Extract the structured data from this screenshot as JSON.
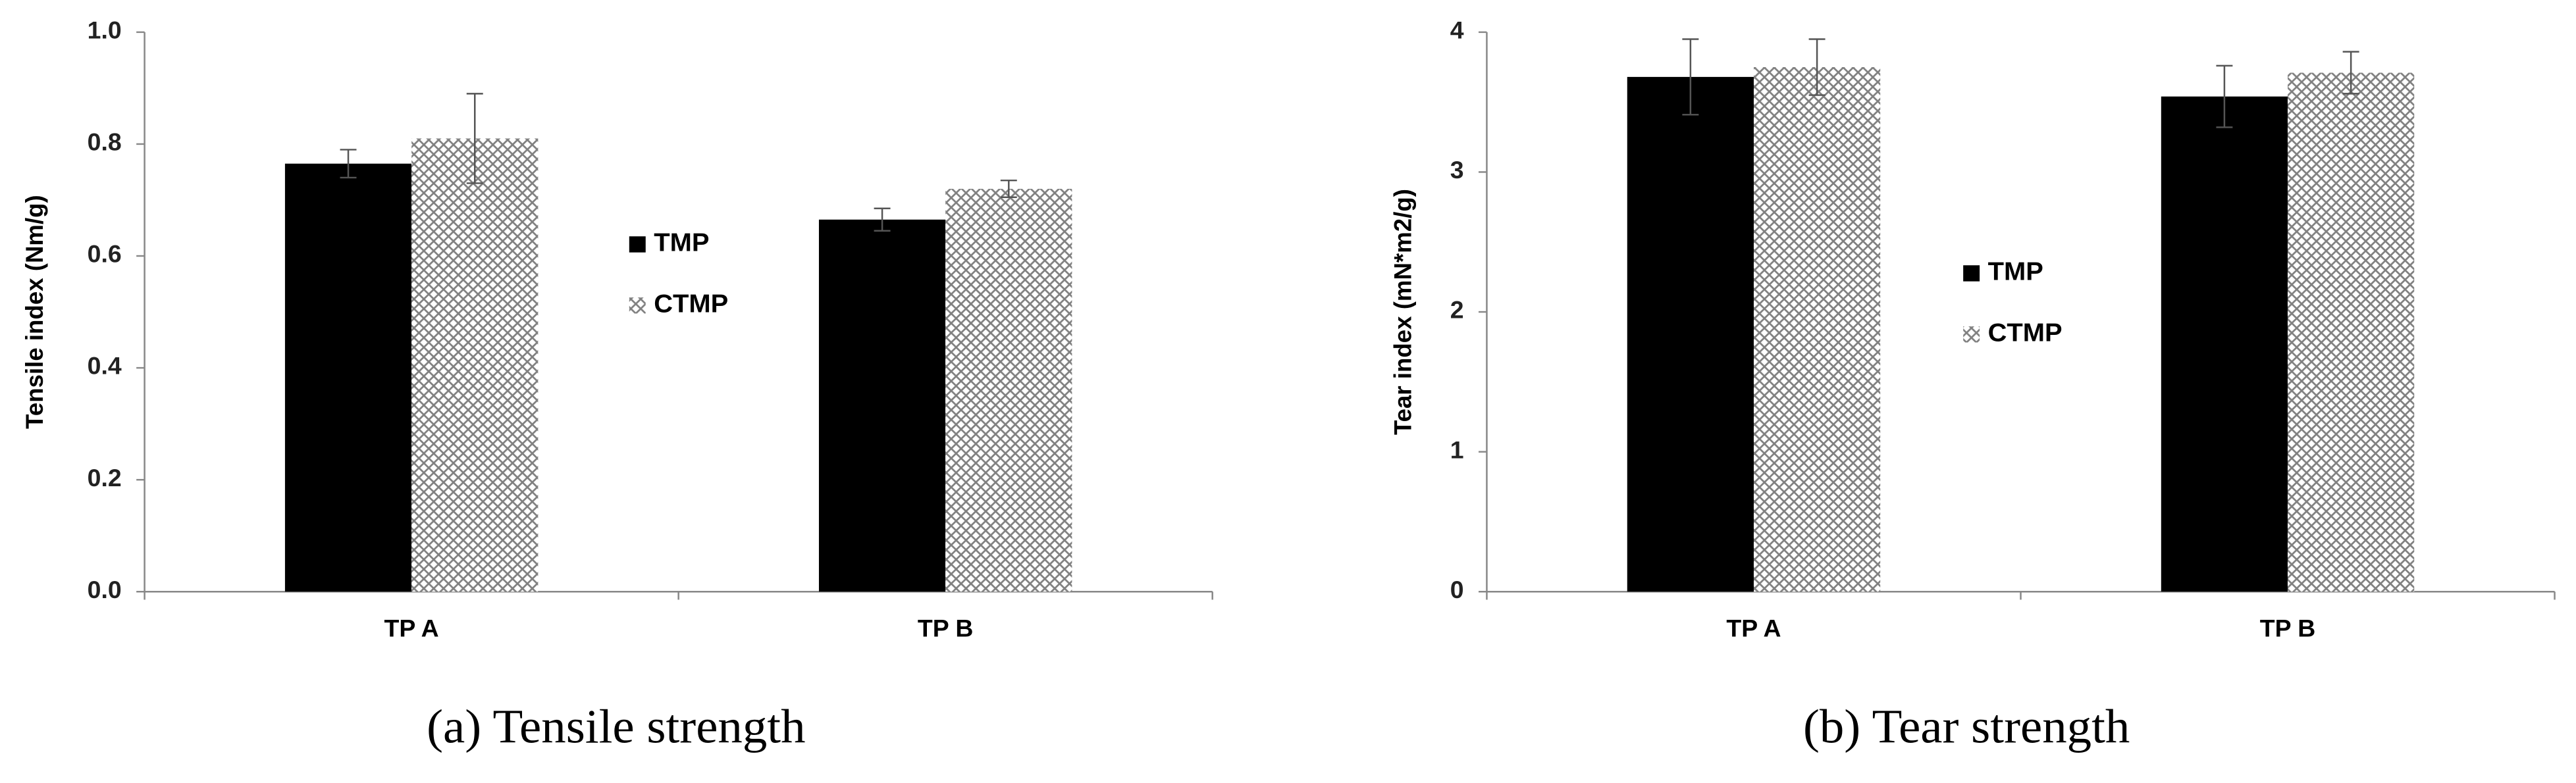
{
  "chart_data": [
    {
      "type": "bar",
      "y_label": "Tensile index (Nm/g)",
      "caption": "(a) Tensile strength",
      "categories": [
        "TP A",
        "TP B"
      ],
      "series": [
        {
          "name": "TMP",
          "color": "#000000",
          "hatch": false,
          "values": [
            0.765,
            0.665
          ],
          "errors": [
            0.025,
            0.02
          ]
        },
        {
          "name": "CTMP",
          "color": "#808080",
          "hatch": true,
          "values": [
            0.81,
            0.72
          ],
          "errors": [
            0.08,
            0.015
          ]
        }
      ],
      "ylim": [
        0,
        1
      ],
      "yticks": [
        {
          "value": 0,
          "label": "0.0"
        },
        0.2,
        0.4,
        0.6,
        0.8,
        {
          "value": 1,
          "label": "1.0"
        }
      ]
    },
    {
      "type": "bar",
      "y_label": "Tear index (mN*m2/g)",
      "caption": "(b) Tear strength",
      "categories": [
        "TP A",
        "TP B"
      ],
      "series": [
        {
          "name": "TMP",
          "color": "#000000",
          "hatch": false,
          "values": [
            3.68,
            3.54
          ],
          "errors": [
            0.27,
            0.22
          ]
        },
        {
          "name": "CTMP",
          "color": "#808080",
          "hatch": true,
          "values": [
            3.75,
            3.71
          ],
          "errors": [
            0.2,
            0.15
          ]
        }
      ],
      "ylim": [
        0,
        4
      ],
      "yticks": [
        0,
        1,
        2,
        3,
        4
      ]
    }
  ]
}
